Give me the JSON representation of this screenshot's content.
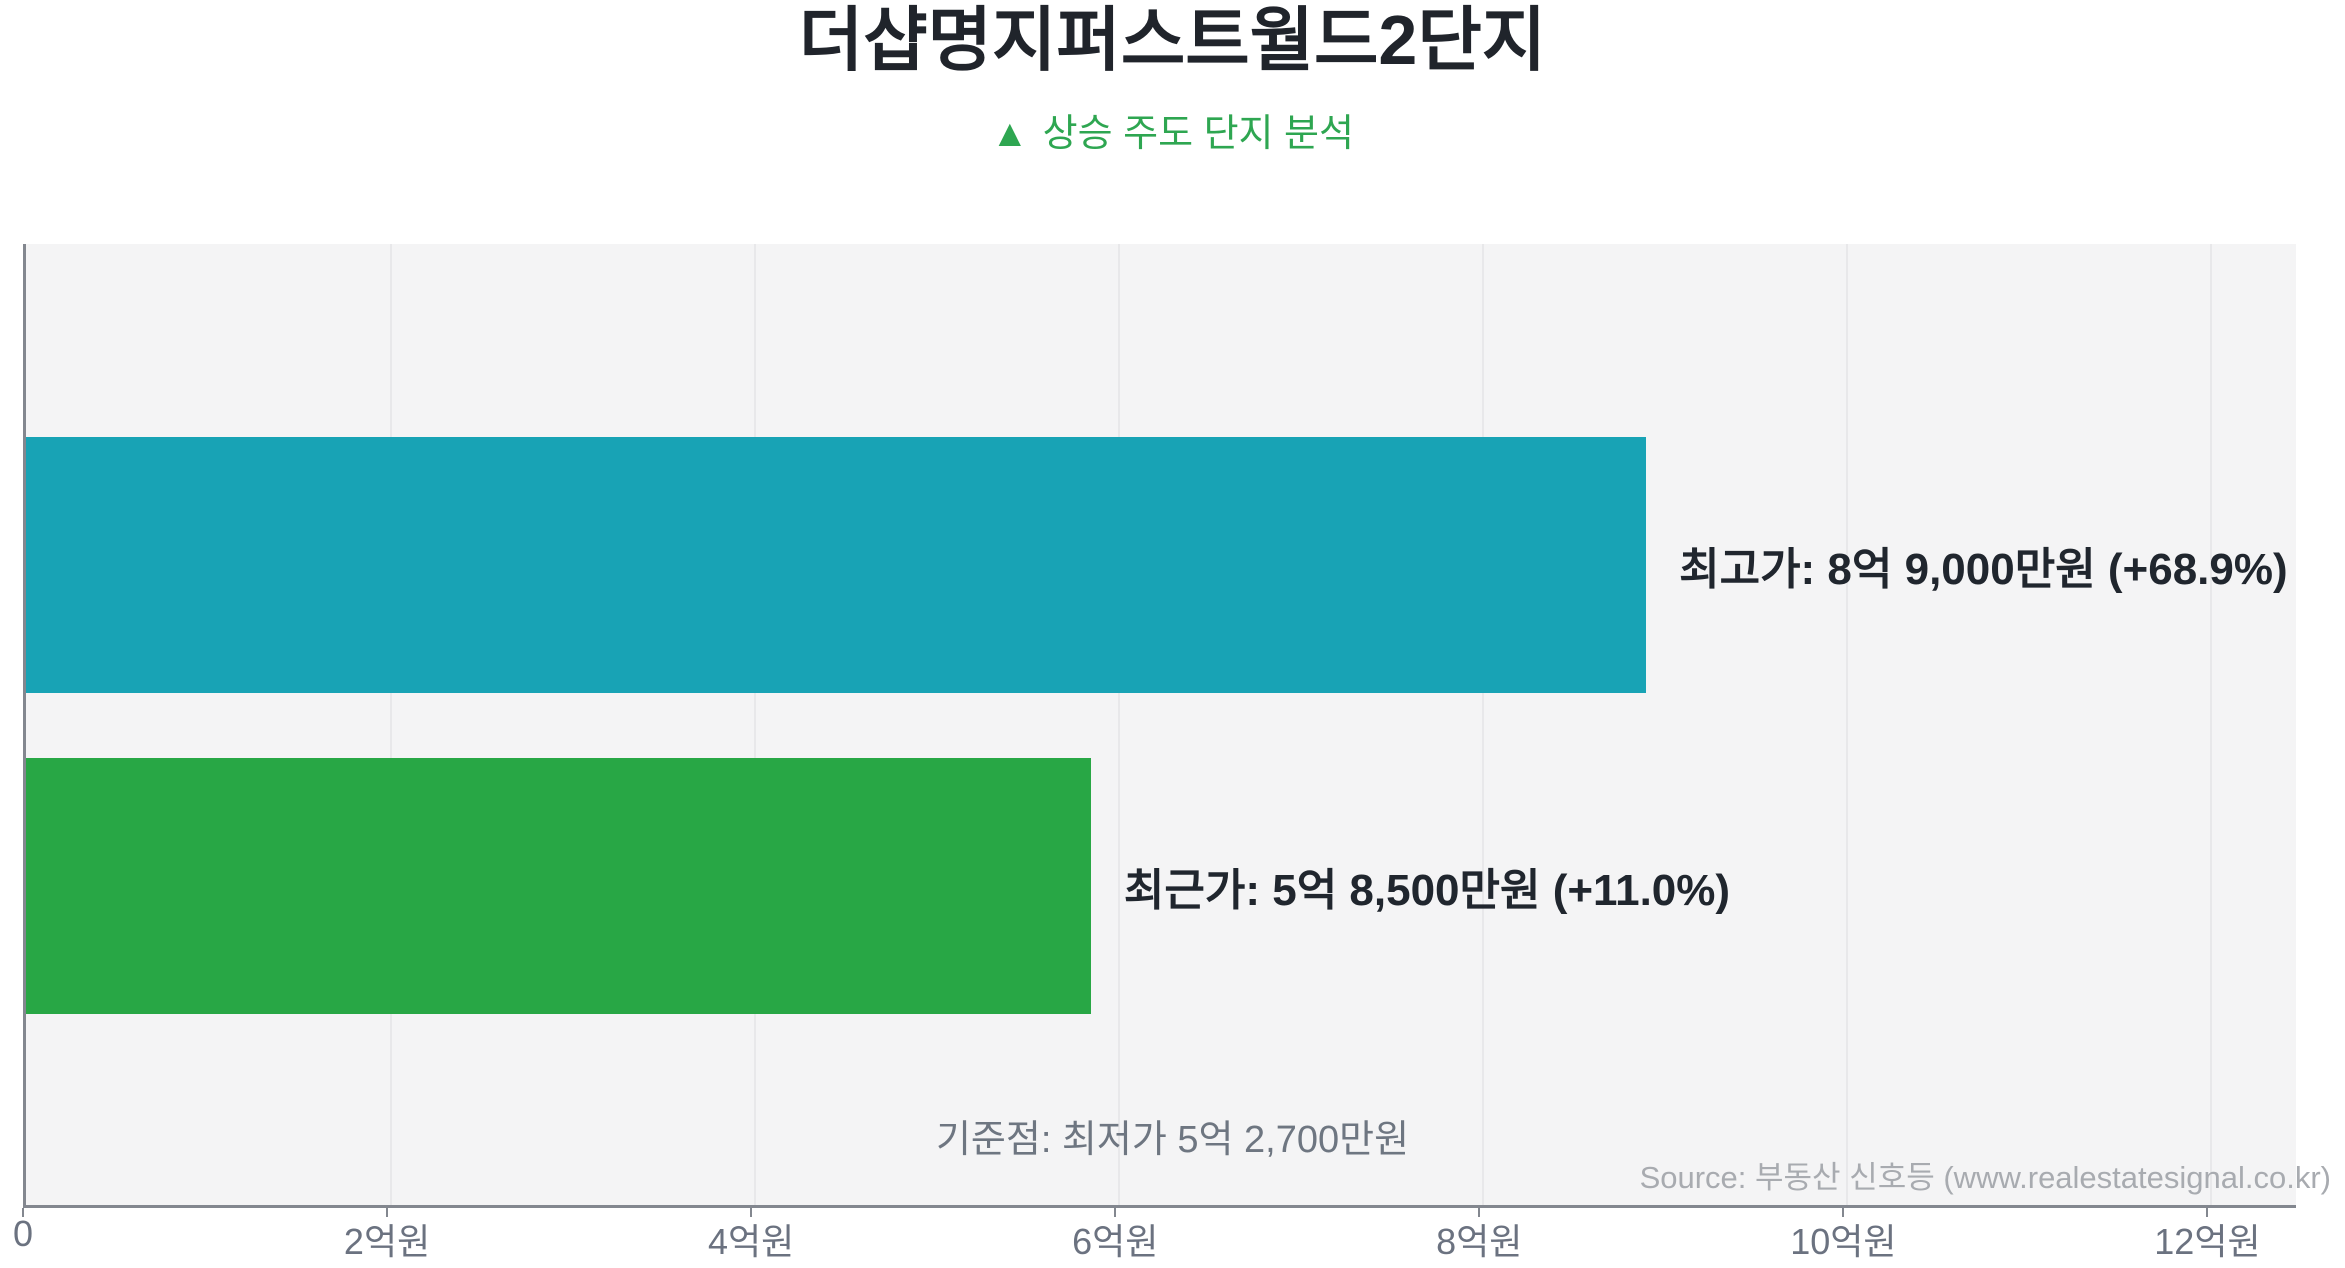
{
  "page": {
    "background_color": "#ffffff",
    "plot_background_color": "#f4f4f5",
    "accent_green": "#2EA651",
    "axis_color": "#83878f",
    "gridline_color": "#e8e8ea"
  },
  "chart_data": {
    "type": "bar",
    "orientation": "horizontal",
    "title": "더샵명지퍼스트월드2단지",
    "subtitle_marker": "▲",
    "subtitle_text": "상승 주도 단지 분석",
    "unit": "억원",
    "bars": [
      {
        "name": "peak-price",
        "category": "최고가",
        "label": "최고가: 8억 9,000만원 (+68.9%)",
        "value_eok": 8.9,
        "change_pct": "+68.9%",
        "color": "#18A3B5"
      },
      {
        "name": "recent-price",
        "category": "최근가",
        "label": "최근가: 5억 8,500만원 (+11.0%)",
        "value_eok": 5.85,
        "change_pct": "+11.0%",
        "color": "#28A745"
      }
    ],
    "baseline_note": "기준점: 최저가 5억 2,700만원",
    "baseline_value_eok": 5.27,
    "source": "Source: 부동산 신호등 (www.realestatesignal.co.kr)",
    "xlabel": "",
    "ylabel": "",
    "xlim": [
      0,
      12.47
    ],
    "x_ticks": [
      {
        "value": 0,
        "label": "0"
      },
      {
        "value": 2,
        "label": "2억원"
      },
      {
        "value": 4,
        "label": "4억원"
      },
      {
        "value": 6,
        "label": "6억원"
      },
      {
        "value": 8,
        "label": "8억원"
      },
      {
        "value": 10,
        "label": "10억원"
      },
      {
        "value": 12,
        "label": "12억원"
      }
    ],
    "grid": true,
    "legend": false
  }
}
